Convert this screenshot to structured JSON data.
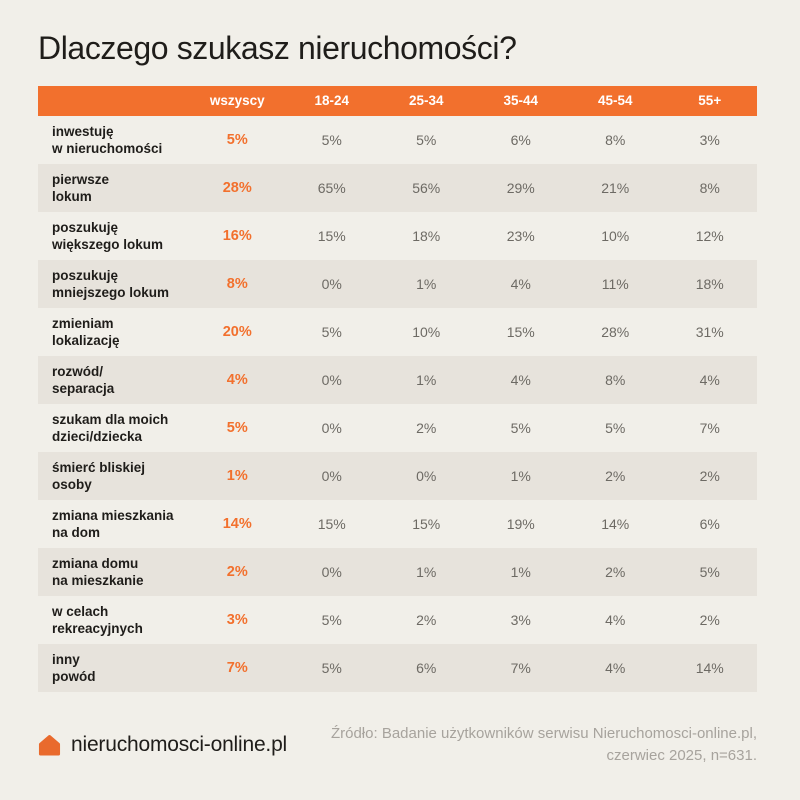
{
  "page": {
    "title": "Dlaczego szukasz nieruchomości?",
    "background_color": "#F1EFE9",
    "accent_color": "#F2702D",
    "row_shade_color": "#E7E3DC"
  },
  "chart_data": {
    "type": "table",
    "title": "Dlaczego szukasz nieruchomości?",
    "columns": [
      "wszyscy",
      "18-24",
      "25-34",
      "35-44",
      "45-54",
      "55+"
    ],
    "highlight_column": "wszyscy",
    "rows": [
      {
        "label_lines": [
          "inwestuję",
          "w nieruchomości"
        ],
        "values": [
          "5%",
          "5%",
          "5%",
          "6%",
          "8%",
          "3%"
        ]
      },
      {
        "label_lines": [
          "pierwsze",
          "lokum"
        ],
        "values": [
          "28%",
          "65%",
          "56%",
          "29%",
          "21%",
          "8%"
        ]
      },
      {
        "label_lines": [
          "poszukuję",
          "większego lokum"
        ],
        "values": [
          "16%",
          "15%",
          "18%",
          "23%",
          "10%",
          "12%"
        ]
      },
      {
        "label_lines": [
          "poszukuję",
          "mniejszego lokum"
        ],
        "values": [
          "8%",
          "0%",
          "1%",
          "4%",
          "11%",
          "18%"
        ]
      },
      {
        "label_lines": [
          "zmieniam",
          "lokalizację"
        ],
        "values": [
          "20%",
          "5%",
          "10%",
          "15%",
          "28%",
          "31%"
        ]
      },
      {
        "label_lines": [
          "rozwód/",
          "separacja"
        ],
        "values": [
          "4%",
          "0%",
          "1%",
          "4%",
          "8%",
          "4%"
        ]
      },
      {
        "label_lines": [
          "szukam dla moich",
          "dzieci/dziecka"
        ],
        "values": [
          "5%",
          "0%",
          "2%",
          "5%",
          "5%",
          "7%"
        ]
      },
      {
        "label_lines": [
          "śmierć bliskiej",
          "osoby"
        ],
        "values": [
          "1%",
          "0%",
          "0%",
          "1%",
          "2%",
          "2%"
        ]
      },
      {
        "label_lines": [
          "zmiana mieszkania",
          "na dom"
        ],
        "values": [
          "14%",
          "15%",
          "15%",
          "19%",
          "14%",
          "6%"
        ]
      },
      {
        "label_lines": [
          "zmiana domu",
          "na mieszkanie"
        ],
        "values": [
          "2%",
          "0%",
          "1%",
          "1%",
          "2%",
          "5%"
        ]
      },
      {
        "label_lines": [
          "w celach",
          "rekreacyjnych"
        ],
        "values": [
          "3%",
          "5%",
          "2%",
          "3%",
          "4%",
          "2%"
        ]
      },
      {
        "label_lines": [
          "inny",
          "powód"
        ],
        "values": [
          "7%",
          "5%",
          "6%",
          "7%",
          "4%",
          "14%"
        ]
      }
    ]
  },
  "footer": {
    "logo_text": "nieruchomosci-online.pl",
    "logo_color": "#E96A2D",
    "source_line1": "Źródło: Badanie użytkowników serwisu Nieruchomosci-online.pl,",
    "source_line2": "czerwiec 2025, n=631."
  }
}
